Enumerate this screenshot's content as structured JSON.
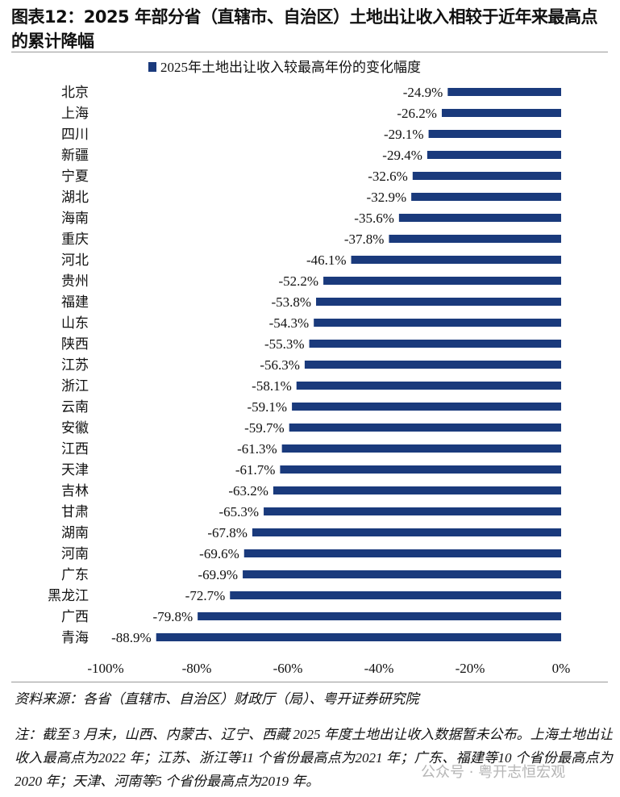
{
  "title": "图表12：2025 年部分省（直辖市、自治区）土地出让收入相较于近年来最高点的累计降幅",
  "source": "资料来源：各省（直辖市、自治区）财政厅（局）、粤开证券研究院",
  "note": "注：截至 3 月末，山西、内蒙古、辽宁、西藏 2025 年度土地出让收入数据暂未公布。上海土地出让收入最高点为2022 年；江苏、浙江等11 个省份最高点为2021 年；广东、福建等10 个省份最高点为2020 年；天津、河南等5 个省份最高点为2019 年。",
  "watermark": "公众号 · 粤开志恒宏观",
  "chart_data": {
    "type": "bar",
    "orientation": "horizontal",
    "title": "",
    "legend": {
      "position": "top",
      "entries": [
        "2025年土地出让收入较最高年份的变化幅度"
      ]
    },
    "series": [
      {
        "name": "2025年土地出让收入较最高年份的变化幅度",
        "color": "#1a3a7c",
        "values": [
          -24.9,
          -26.2,
          -29.1,
          -29.4,
          -32.6,
          -32.9,
          -35.6,
          -37.8,
          -46.1,
          -52.2,
          -53.8,
          -54.3,
          -55.3,
          -56.3,
          -58.1,
          -59.1,
          -59.7,
          -61.3,
          -61.7,
          -63.2,
          -65.3,
          -67.8,
          -69.6,
          -69.9,
          -72.7,
          -79.8,
          -88.9
        ]
      }
    ],
    "categories": [
      "北京",
      "上海",
      "四川",
      "新疆",
      "宁夏",
      "湖北",
      "海南",
      "重庆",
      "河北",
      "贵州",
      "福建",
      "山东",
      "陕西",
      "江苏",
      "浙江",
      "云南",
      "安徽",
      "江西",
      "天津",
      "吉林",
      "甘肃",
      "湖南",
      "河南",
      "广东",
      "黑龙江",
      "广西",
      "青海"
    ],
    "data_labels": [
      "-24.9%",
      "-26.2%",
      "-29.1%",
      "-29.4%",
      "-32.6%",
      "-32.9%",
      "-35.6%",
      "-37.8%",
      "-46.1%",
      "-52.2%",
      "-53.8%",
      "-54.3%",
      "-55.3%",
      "-56.3%",
      "-58.1%",
      "-59.1%",
      "-59.7%",
      "-61.3%",
      "-61.7%",
      "-63.2%",
      "-65.3%",
      "-67.8%",
      "-69.6%",
      "-69.9%",
      "-72.7%",
      "-79.8%",
      "-88.9%"
    ],
    "xlim": [
      -100,
      0
    ],
    "x_ticks": [
      -100,
      -80,
      -60,
      -40,
      -20,
      0
    ],
    "x_tick_labels": [
      "-100%",
      "-80%",
      "-60%",
      "-40%",
      "-20%",
      "0%"
    ],
    "grid": false,
    "xlabel": "",
    "ylabel": ""
  }
}
